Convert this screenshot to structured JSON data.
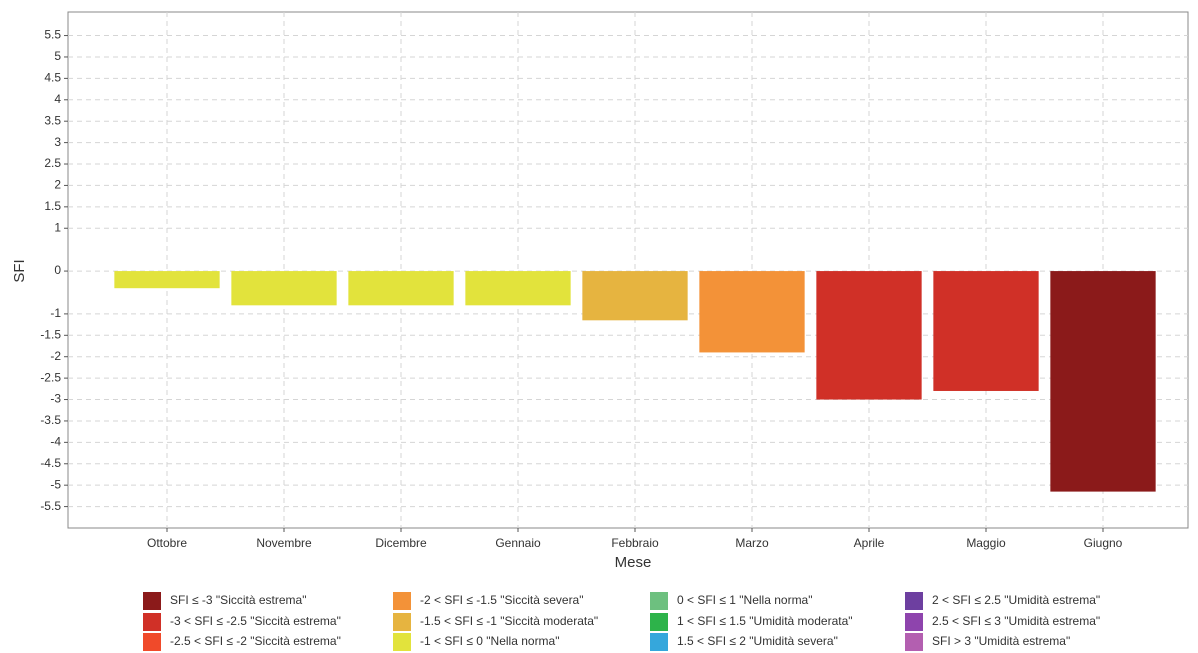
{
  "chart_data": {
    "type": "bar",
    "x_label": "Mese",
    "y_label": "SFI",
    "categories": [
      "Ottobre",
      "Novembre",
      "Dicembre",
      "Gennaio",
      "Febbraio",
      "Marzo",
      "Aprile",
      "Maggio",
      "Giugno"
    ],
    "values": [
      -0.4,
      -0.8,
      -0.8,
      -0.8,
      -1.15,
      -1.9,
      -3.0,
      -2.8,
      -5.15
    ],
    "colors": [
      "#e2e33c",
      "#e2e33c",
      "#e2e33c",
      "#e2e33c",
      "#e6b440",
      "#f39238",
      "#d03027",
      "#d03027",
      "#8b1a1a"
    ],
    "ylim": [
      -6,
      6.05
    ],
    "yticks": [
      5.5,
      5,
      4.5,
      4,
      3.5,
      3,
      2.5,
      2,
      1.5,
      1,
      0,
      -1,
      -1.5,
      -2,
      -2.5,
      -3,
      -3.5,
      -4,
      -4.5,
      -5,
      -5.5
    ],
    "grid": true,
    "legend": [
      {
        "label": "SFI ≤ -3 \"Siccità estrema\"",
        "color": "#8b1a1a"
      },
      {
        "label": "-3 < SFI ≤ -2.5 \"Siccità estrema\"",
        "color": "#d03027"
      },
      {
        "label": "-2.5 < SFI ≤ -2 \"Siccità estrema\"",
        "color": "#f04a2a"
      },
      {
        "label": "-2 < SFI ≤ -1.5 \"Siccità severa\"",
        "color": "#f39238"
      },
      {
        "label": "-1.5 < SFI ≤ -1 \"Siccità moderata\"",
        "color": "#e6b440"
      },
      {
        "label": "-1 < SFI ≤ 0 \"Nella norma\"",
        "color": "#e2e33c"
      },
      {
        "label": "0 < SFI ≤ 1 \"Nella norma\"",
        "color": "#6dc07f"
      },
      {
        "label": "1 < SFI ≤ 1.5 \"Umidità moderata\"",
        "color": "#2db34a"
      },
      {
        "label": "1.5 < SFI ≤ 2 \"Umidità severa\"",
        "color": "#35a7dc"
      },
      {
        "label": "2 < SFI ≤ 2.5 \"Umidità estrema\"",
        "color": "#6d3fa0"
      },
      {
        "label": "2.5 < SFI ≤ 3 \"Umidità estrema\"",
        "color": "#8e44ad"
      },
      {
        "label": "SFI > 3 \"Umidità estrema\"",
        "color": "#b35fb0"
      }
    ]
  }
}
